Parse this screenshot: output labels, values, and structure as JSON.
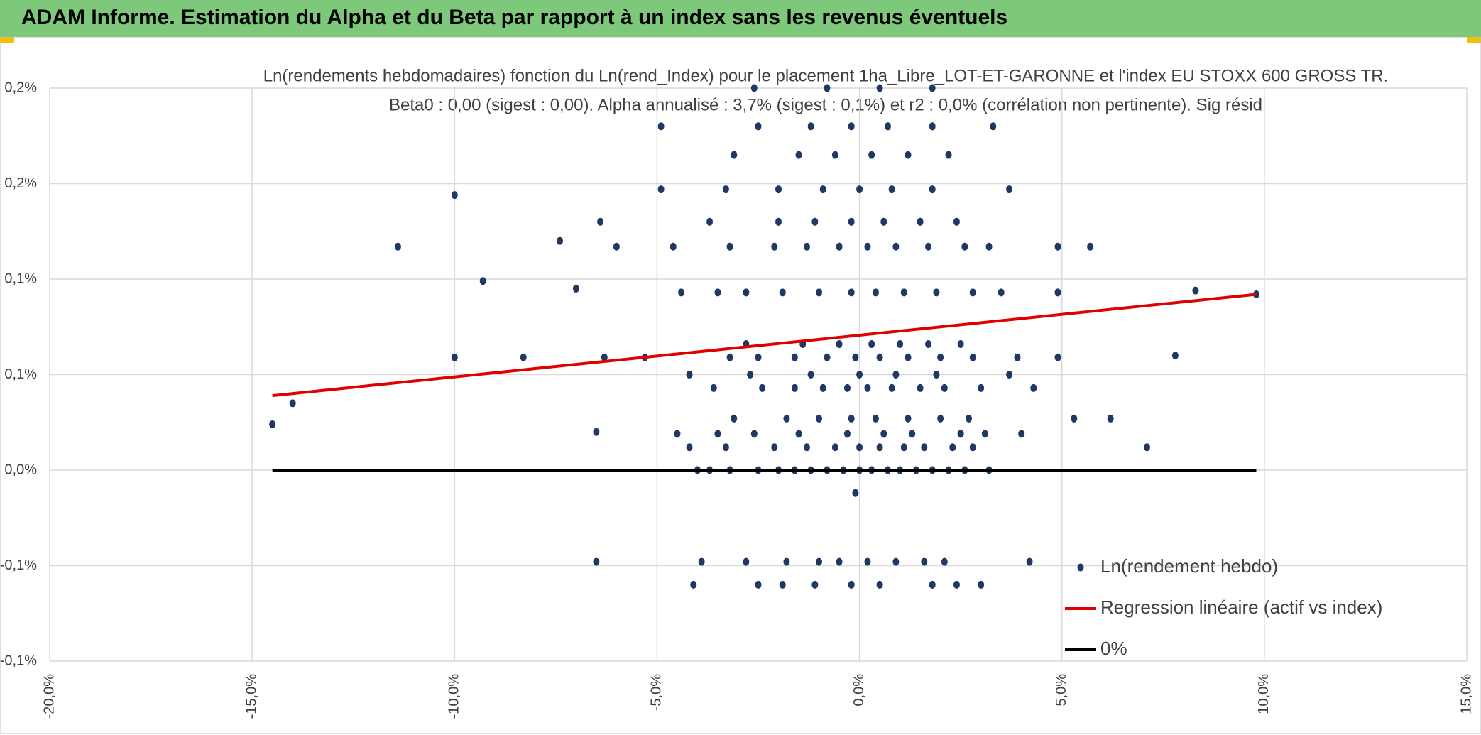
{
  "header": {
    "title": "ADAM Informe. Estimation du Alpha et du Beta par rapport à un index sans les revenus éventuels"
  },
  "chart_data": {
    "type": "scatter",
    "title": "Ln(rendements hebdomadaires) fonction du Ln(rend_Index) pour le placement 1ha_Libre_LOT-ET-GARONNE et l'index EU STOXX 600 GROSS TR.",
    "subtitle": "Beta0 : 0,00 (sigest : 0,00). Alpha annualisé : 3,7% (sigest : 0,1%) et r2 : 0,0% (corrélation non pertinente). Sig résid",
    "xlim": [
      -20,
      15
    ],
    "xticks": [
      {
        "value": -20,
        "label": "-20,0%"
      },
      {
        "value": -15,
        "label": "-15,0%"
      },
      {
        "value": -10,
        "label": "-10,0%"
      },
      {
        "value": -5,
        "label": "-5,0%"
      },
      {
        "value": 0,
        "label": "0,0%"
      },
      {
        "value": 5,
        "label": "5,0%"
      },
      {
        "value": 10,
        "label": "10,0%"
      },
      {
        "value": 15,
        "label": "15,0%"
      }
    ],
    "ylim": [
      -0.1,
      0.2
    ],
    "yticks": [
      {
        "value": -0.1,
        "label": "-0,1%"
      },
      {
        "value": -0.05,
        "label": "-0,1%"
      },
      {
        "value": 0,
        "label": "0,0%"
      },
      {
        "value": 0.05,
        "label": "0,1%"
      },
      {
        "value": 0.1,
        "label": "0,1%"
      },
      {
        "value": 0.15,
        "label": "0,2%"
      },
      {
        "value": 0.2,
        "label": "0,2%"
      }
    ],
    "grid": true,
    "legend": "bottom-right",
    "series": [
      {
        "name": "Ln(rendement hebdo)",
        "color": "#203864",
        "kind": "points",
        "x": [
          -4,
          -3.7,
          -3.2,
          -2.5,
          -2,
          -1.6,
          -1.2,
          -0.8,
          -0.4,
          0,
          0.3,
          0.7,
          1,
          1.4,
          1.8,
          2.2,
          2.6,
          3.2,
          -4.2,
          -3.3,
          -2.1,
          -1.3,
          -0.6,
          0,
          0.5,
          1.1,
          1.6,
          2.3,
          2.8,
          -4.5,
          -3.5,
          -2.6,
          -1.5,
          -0.3,
          0.6,
          1.3,
          2.5,
          3.1,
          4,
          -3.1,
          -1.8,
          -1,
          -0.2,
          0.4,
          1.2,
          2,
          2.7,
          5.3,
          6.2,
          -3.6,
          -2.4,
          -1.6,
          -0.9,
          -0.3,
          0.2,
          0.8,
          1.5,
          2.1,
          3,
          4.3,
          -4.2,
          -2.7,
          -1.2,
          0,
          0.9,
          1.9,
          3.7,
          -6.3,
          -5.3,
          -3.2,
          -2.5,
          -1.6,
          -0.8,
          -0.1,
          0.5,
          1.2,
          2,
          2.8,
          3.9,
          4.9,
          -2.8,
          -1.4,
          -0.5,
          0.3,
          1,
          1.7,
          2.5,
          -4.4,
          -3.5,
          -2.8,
          -1.9,
          -1,
          -0.2,
          0.4,
          1.1,
          1.9,
          2.8,
          3.5,
          4.9,
          -6,
          -4.6,
          -3.2,
          -2.1,
          -1.3,
          -0.5,
          0.2,
          0.9,
          1.7,
          2.6,
          3.2,
          4.9,
          5.7,
          -3.7,
          -2,
          -1.1,
          -0.2,
          0.6,
          1.5,
          2.4,
          -4.9,
          -3.3,
          -2,
          -0.9,
          0,
          0.8,
          1.8,
          3.7,
          -3.1,
          -1.5,
          -0.6,
          0.3,
          1.2,
          2.2,
          -4.9,
          -2.5,
          -1.2,
          -0.2,
          0.7,
          1.8,
          3.3,
          -2.6,
          -0.8,
          0.5,
          1.8,
          -3.9,
          -2.8,
          -1.8,
          -1,
          -0.5,
          0.2,
          0.9,
          1.6,
          2.1,
          -4.1,
          -2.5,
          -1.9,
          -1.1,
          -0.2,
          0.5,
          1.8,
          2.4,
          3,
          -14.5,
          -14,
          -11.4,
          -10,
          -9.3,
          -10,
          -8.3,
          -7.4,
          -7,
          -6.4,
          -6.5,
          8.3,
          9.8,
          7.1,
          7.8,
          -0.1,
          -6.5,
          4.2
        ],
        "values": [
          0,
          0,
          0,
          0,
          0,
          0,
          0,
          0,
          0,
          0,
          0,
          0,
          0,
          0,
          0,
          0,
          0,
          0,
          0.012,
          0.012,
          0.012,
          0.012,
          0.012,
          0.012,
          0.012,
          0.012,
          0.012,
          0.012,
          0.012,
          0.019,
          0.019,
          0.019,
          0.019,
          0.019,
          0.019,
          0.019,
          0.019,
          0.019,
          0.019,
          0.027,
          0.027,
          0.027,
          0.027,
          0.027,
          0.027,
          0.027,
          0.027,
          0.027,
          0.027,
          0.043,
          0.043,
          0.043,
          0.043,
          0.043,
          0.043,
          0.043,
          0.043,
          0.043,
          0.043,
          0.043,
          0.05,
          0.05,
          0.05,
          0.05,
          0.05,
          0.05,
          0.05,
          0.059,
          0.059,
          0.059,
          0.059,
          0.059,
          0.059,
          0.059,
          0.059,
          0.059,
          0.059,
          0.059,
          0.059,
          0.059,
          0.066,
          0.066,
          0.066,
          0.066,
          0.066,
          0.066,
          0.066,
          0.093,
          0.093,
          0.093,
          0.093,
          0.093,
          0.093,
          0.093,
          0.093,
          0.093,
          0.093,
          0.093,
          0.093,
          0.117,
          0.117,
          0.117,
          0.117,
          0.117,
          0.117,
          0.117,
          0.117,
          0.117,
          0.117,
          0.117,
          0.117,
          0.117,
          0.13,
          0.13,
          0.13,
          0.13,
          0.13,
          0.13,
          0.13,
          0.147,
          0.147,
          0.147,
          0.147,
          0.147,
          0.147,
          0.147,
          0.147,
          0.165,
          0.165,
          0.165,
          0.165,
          0.165,
          0.165,
          0.18,
          0.18,
          0.18,
          0.18,
          0.18,
          0.18,
          0.18,
          0.2,
          0.2,
          0.2,
          0.2,
          -0.048,
          -0.048,
          -0.048,
          -0.048,
          -0.048,
          -0.048,
          -0.048,
          -0.048,
          -0.048,
          -0.06,
          -0.06,
          -0.06,
          -0.06,
          -0.06,
          -0.06,
          -0.06,
          -0.06,
          -0.06,
          0.024,
          0.035,
          0.117,
          0.144,
          0.099,
          0.059,
          0.059,
          0.12,
          0.095,
          0.13,
          0.02,
          0.094,
          0.092,
          0.012,
          0.06,
          -0.012,
          -0.048,
          -0.048
        ]
      },
      {
        "name": "Regression linéaire (actif vs index)",
        "color": "#e00000",
        "kind": "line",
        "x": [
          -14.5,
          9.8
        ],
        "values": [
          0.039,
          0.092
        ]
      },
      {
        "name": "0%",
        "color": "#000000",
        "kind": "line",
        "x": [
          -14.5,
          9.8
        ],
        "values": [
          0,
          0
        ]
      }
    ]
  }
}
